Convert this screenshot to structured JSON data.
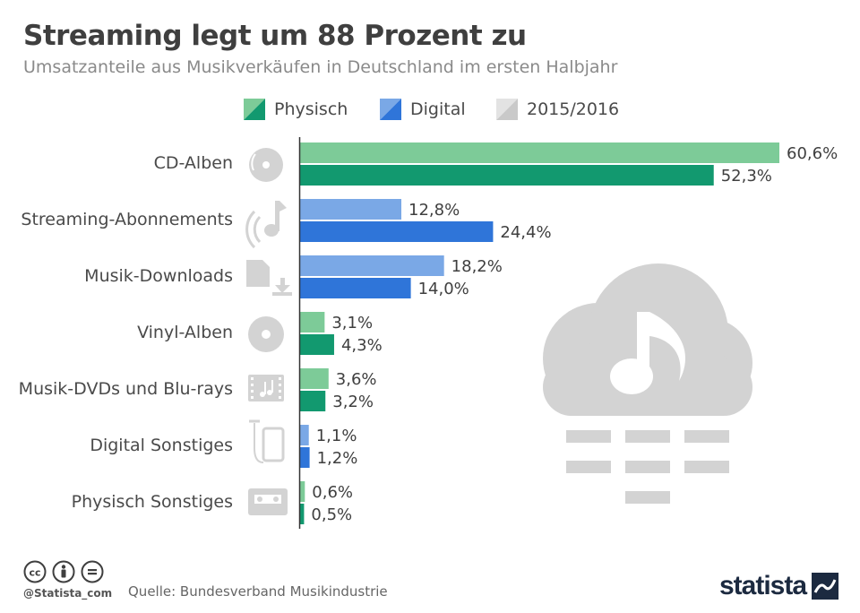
{
  "title": "Streaming legt um 88 Prozent zu",
  "subtitle": "Umsatzanteile aus Musikverkäufen in Deutschland im ersten Halbjahr",
  "legend": [
    {
      "label": "Physisch",
      "icon": "green-split-swatch"
    },
    {
      "label": "Digital",
      "icon": "blue-split-swatch"
    },
    {
      "label": "2015/2016",
      "icon": "grey-split-swatch"
    }
  ],
  "colors": {
    "physisch_2015": "#7dcb98",
    "physisch_2016": "#12996f",
    "digital_2015": "#7aa8e6",
    "digital_2016": "#2f75d9",
    "icon_grey": "#d3d3d3",
    "axis": "#333333"
  },
  "chart_data": {
    "type": "bar",
    "orientation": "horizontal",
    "categories": [
      "CD-Alben",
      "Streaming-Abonnements",
      "Musik-Downloads",
      "Vinyl-Alben",
      "Musik-DVDs und Blu-rays",
      "Digital Sonstiges",
      "Physisch Sonstiges"
    ],
    "category_group": [
      "Physisch",
      "Digital",
      "Digital",
      "Physisch",
      "Physisch",
      "Digital",
      "Physisch"
    ],
    "category_icons": [
      "cd-icon",
      "streaming-note-icon",
      "download-file-icon",
      "vinyl-icon",
      "film-strip-icon",
      "phone-headphones-icon",
      "cassette-icon"
    ],
    "series": [
      {
        "name": "2015",
        "values": [
          60.6,
          12.8,
          18.2,
          3.1,
          3.6,
          1.1,
          0.6
        ],
        "labels": [
          "60,6%",
          "12,8%",
          "18,2%",
          "3,1%",
          "3,6%",
          "1,1%",
          "0,6%"
        ]
      },
      {
        "name": "2016",
        "values": [
          52.3,
          24.4,
          14.0,
          4.3,
          3.2,
          1.2,
          0.5
        ],
        "labels": [
          "52,3%",
          "24,4%",
          "14,0%",
          "4,3%",
          "3,2%",
          "1,2%",
          "0,5%"
        ]
      }
    ],
    "xlim": [
      0,
      60.6
    ],
    "grid": false,
    "legend_position": "top"
  },
  "footer": {
    "handle": "@Statista_com",
    "source": "Quelle: Bundesverband Musikindustrie",
    "brand": "statista",
    "cc_icons": [
      "cc-icon",
      "by-icon",
      "nd-icon"
    ]
  },
  "decoration": {
    "icon": "cloud-music-icon"
  }
}
